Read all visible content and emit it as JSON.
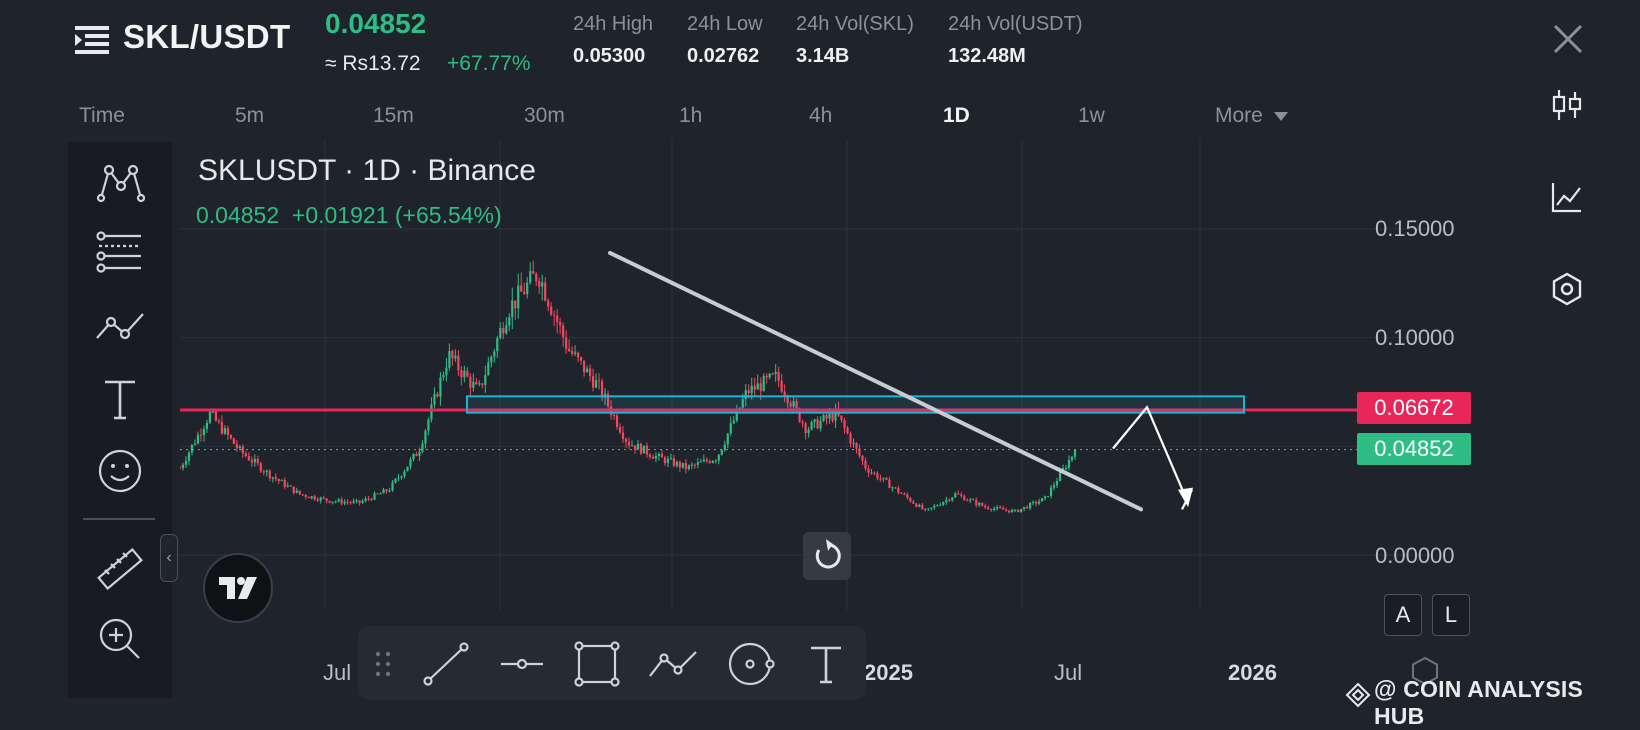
{
  "header": {
    "pair": "SKL/USDT",
    "price": "0.04852",
    "converted": "≈ Rs13.72",
    "change_pct": "+67.77%",
    "stats": [
      {
        "label": "24h High",
        "value": "0.05300"
      },
      {
        "label": "24h Low",
        "value": "0.02762"
      },
      {
        "label": "24h Vol(SKL)",
        "value": "3.14B"
      },
      {
        "label": "24h Vol(USDT)",
        "value": "132.48M"
      }
    ]
  },
  "timeframes": {
    "items": [
      "Time",
      "5m",
      "15m",
      "30m",
      "1h",
      "4h",
      "1D",
      "1w",
      "More"
    ],
    "active": "1D"
  },
  "chart": {
    "title": "SKLUSDT · 1D · Binance",
    "last": "0.04852",
    "change_abs": "+0.01921",
    "change_pct": "(+65.54%)",
    "y_ticks": [
      "0.15000",
      "0.10000",
      "0.00000"
    ],
    "x_ticks": [
      {
        "label": "Jul",
        "bold": false
      },
      {
        "label": "2025",
        "bold": true
      },
      {
        "label": "Jul",
        "bold": false
      },
      {
        "label": "2026",
        "bold": true
      }
    ],
    "resistance_tag": "0.06672",
    "price_tag": "0.04852",
    "colors": {
      "up": "#2ebd85",
      "down": "#f6465d",
      "resistance": "#e8265a",
      "zone": "#1fb5d6",
      "trendline": "#c8ccd2"
    }
  },
  "chart_data": {
    "type": "candlestick",
    "symbol": "SKLUSDT",
    "interval": "1D",
    "exchange": "Binance",
    "x": [
      "Jul",
      "2025",
      "Jul",
      "2026"
    ],
    "ylim": [
      0,
      0.15
    ],
    "resistance_level": 0.06672,
    "last_price": 0.04852,
    "approx_path": [
      0.04,
      0.065,
      0.048,
      0.037,
      0.028,
      0.025,
      0.024,
      0.03,
      0.048,
      0.092,
      0.075,
      0.113,
      0.13,
      0.095,
      0.078,
      0.052,
      0.045,
      0.04,
      0.045,
      0.075,
      0.082,
      0.058,
      0.065,
      0.04,
      0.03,
      0.02,
      0.028,
      0.022,
      0.02,
      0.026,
      0.048
    ]
  },
  "left_toolbar": [
    "patterns-icon",
    "fib-icon",
    "trend-icon",
    "text-icon",
    "emoji-icon",
    "ruler-icon",
    "zoom-in-icon"
  ],
  "draw_toolbar": [
    "drag-handle-icon",
    "line-tool-icon",
    "horizontal-line-icon",
    "rectangle-icon",
    "path-icon",
    "circle-icon",
    "text-tool-icon"
  ],
  "scale_buttons": {
    "auto": "A",
    "log": "L"
  },
  "right_column": [
    "candles-icon",
    "indicators-icon",
    "settings-icon"
  ],
  "watermark": "@ COIN ANALYSIS HUB"
}
